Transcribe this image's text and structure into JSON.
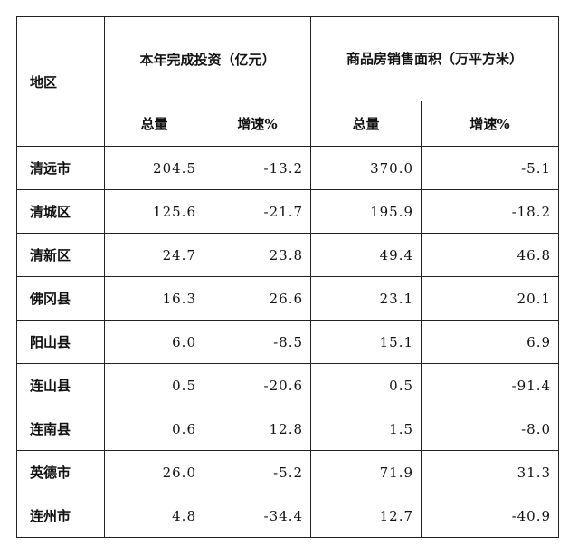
{
  "table": {
    "header": {
      "region": "地区",
      "investment": "本年完成投资（亿元）",
      "sales_area": "商品房销售面积（万平方米）",
      "subheaders": [
        "总量",
        "增速%",
        "总量",
        "增速%"
      ]
    },
    "rows": [
      [
        "清远市",
        "204.5",
        "-13.2",
        "370.0",
        "-5.1"
      ],
      [
        "清城区",
        "125.6",
        "-21.7",
        "195.9",
        "-18.2"
      ],
      [
        "清新区",
        "24.7",
        "23.8",
        "49.4",
        "46.8"
      ],
      [
        "佛冈县",
        "16.3",
        "26.6",
        "23.1",
        "20.1"
      ],
      [
        "阳山县",
        "6.0",
        "-8.5",
        "15.1",
        "6.9"
      ],
      [
        "连山县",
        "0.5",
        "-20.6",
        "0.5",
        "-91.4"
      ],
      [
        "连南县",
        "0.6",
        "12.8",
        "1.5",
        "-8.0"
      ],
      [
        "英德市",
        "26.0",
        "-5.2",
        "71.9",
        "31.3"
      ],
      [
        "连州市",
        "4.8",
        "-34.4",
        "12.7",
        "-40.9"
      ]
    ]
  }
}
